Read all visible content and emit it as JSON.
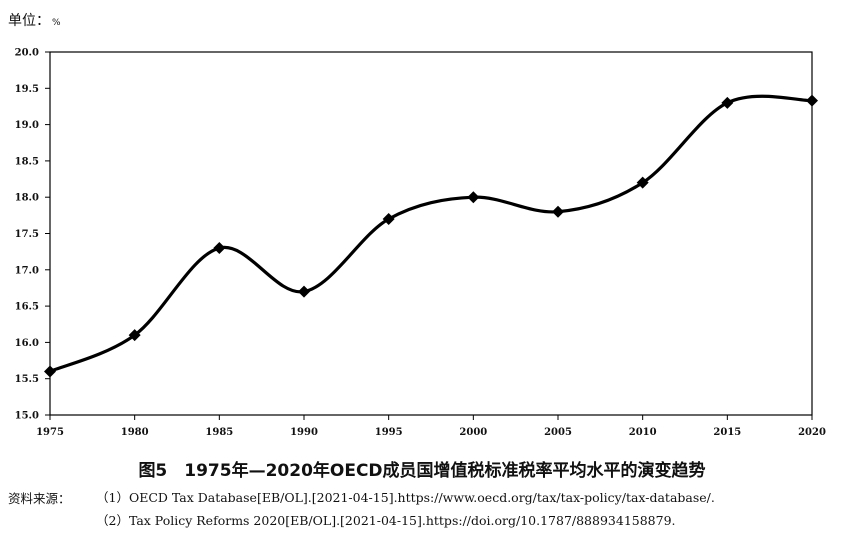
{
  "unit_label": "单位：",
  "unit_value": "%",
  "caption": "图5　1975年—2020年OECD成员国增值税标准税率平均水平的演变趋势",
  "source_label": "资料来源：",
  "sources": [
    "（1）OECD Tax Database[EB/OL].[2021-04-15].https://www.oecd.org/tax/tax-policy/tax-database/.",
    "（2）Tax Policy Reforms 2020[EB/OL].[2021-04-15].https://doi.org/10.1787/888934158879."
  ],
  "chart_data": {
    "type": "line",
    "x": [
      1975,
      1980,
      1985,
      1990,
      1995,
      2000,
      2005,
      2010,
      2015,
      2020
    ],
    "series": [
      {
        "values": [
          15.6,
          16.1,
          17.3,
          16.7,
          17.7,
          18.0,
          17.8,
          18.2,
          19.3,
          19.33
        ]
      }
    ],
    "xlim": [
      1975,
      2020
    ],
    "ylim": [
      15.0,
      20.0
    ],
    "xticks": [
      "1975",
      "1980",
      "1985",
      "1990",
      "1995",
      "2000",
      "2005",
      "2010",
      "2015",
      "2020"
    ],
    "yticks": [
      "15.0",
      "15.5",
      "16.0",
      "16.5",
      "17.0",
      "17.5",
      "18.0",
      "18.5",
      "19.0",
      "19.5",
      "20.0"
    ],
    "marker": "diamond",
    "smooth": true,
    "line_color": "#000000",
    "grid": false,
    "legend": "none"
  }
}
